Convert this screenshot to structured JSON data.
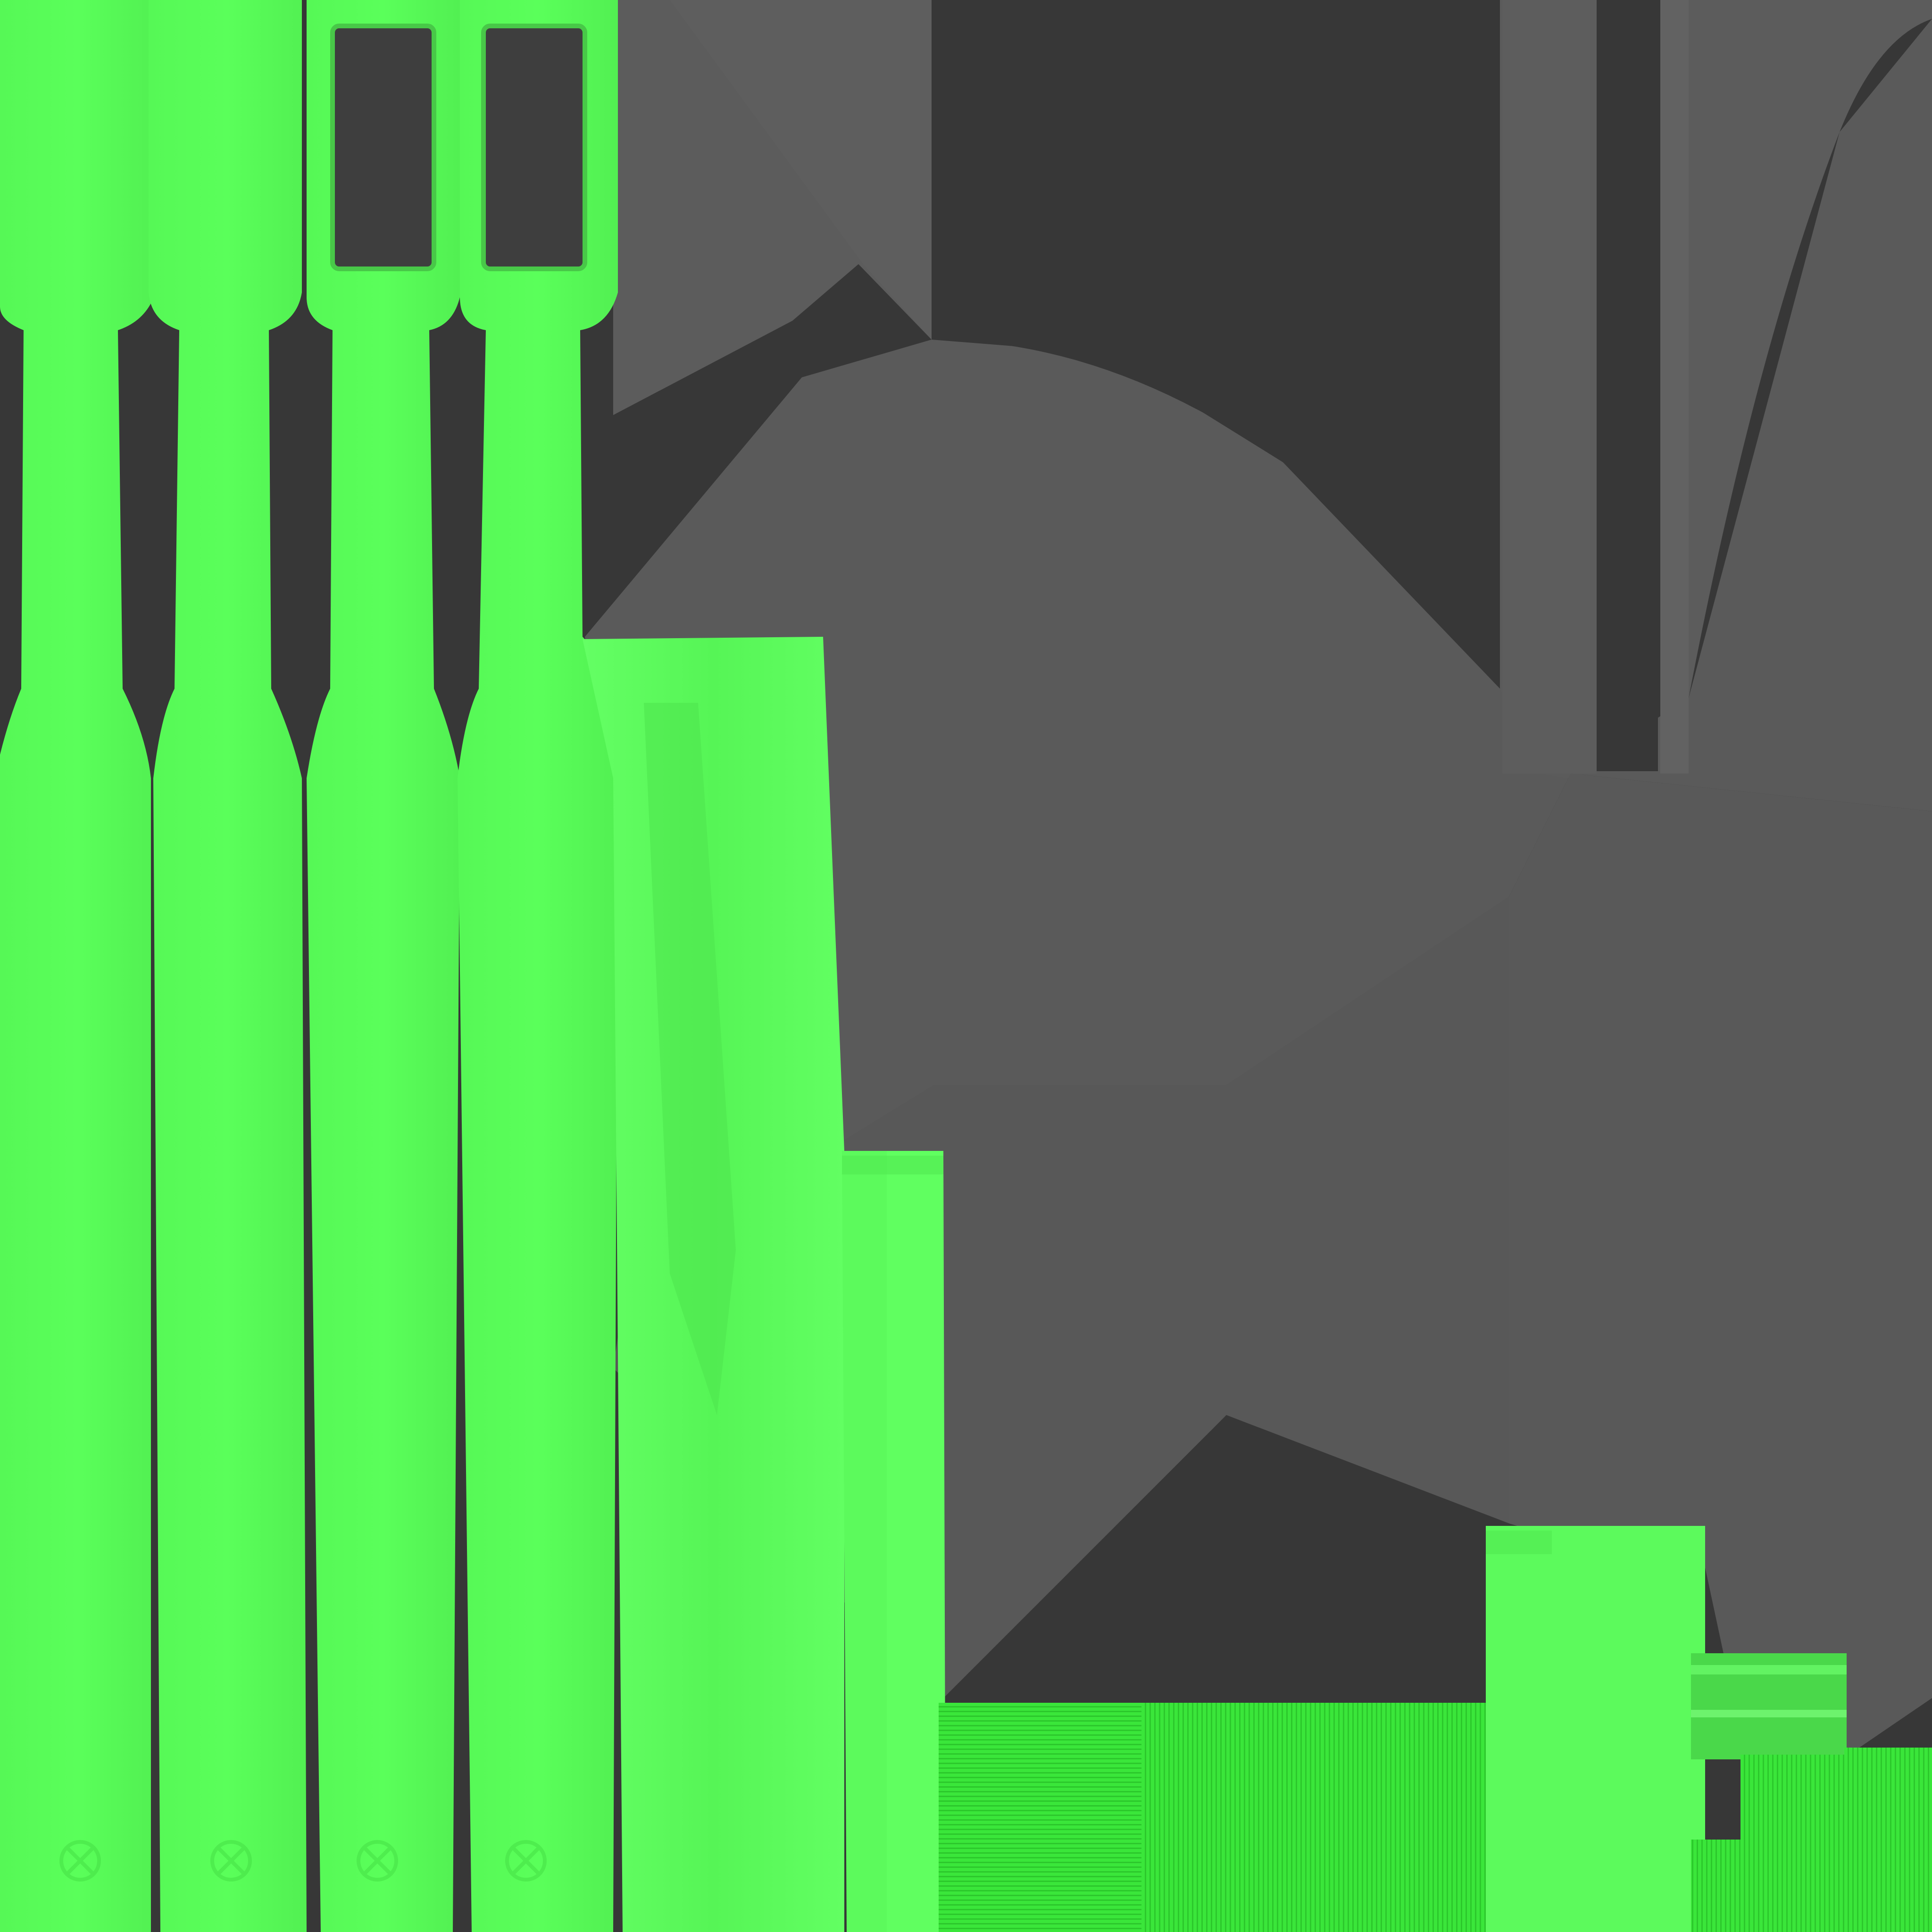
{
  "palette": {
    "background": "#373737",
    "mid_gray": "#5a5a5a",
    "light_gray": "#626262",
    "green_main": "#58ff58",
    "green_light": "#64ff64",
    "green_dark": "#3ce63c",
    "green_deep": "#2ed22e",
    "slot_dark": "#3e3e3e"
  },
  "pieces": {
    "brush_handles": 4,
    "bristle_slots": 2,
    "texture_strips": 6,
    "logo_marks": 4
  }
}
